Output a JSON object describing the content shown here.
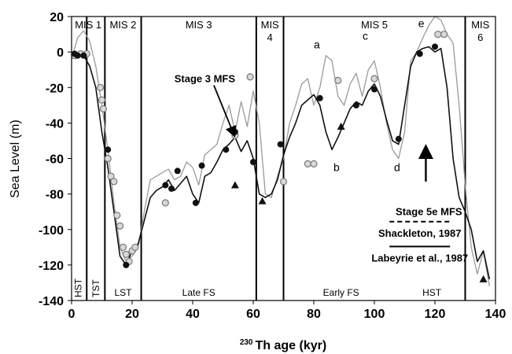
{
  "chart_data": {
    "type": "line",
    "xlabel": "230 Th age (kyr)",
    "xlabel_superscript": "230",
    "xlabel_rest": "Th age (kyr)",
    "ylabel": "Sea Level (m)",
    "xlim": [
      0,
      140
    ],
    "ylim": [
      -140,
      20
    ],
    "x_ticks": [
      0,
      20,
      40,
      60,
      80,
      100,
      120,
      140
    ],
    "y_ticks": [
      20,
      0,
      -20,
      -40,
      -60,
      -80,
      -100,
      -120,
      -140
    ],
    "grid": false,
    "legend_position": "bottom-right",
    "series": [
      {
        "name": "Shackleton, 1987",
        "style": "gray-line",
        "x": [
          0,
          2,
          4,
          6,
          8,
          10,
          12,
          14,
          16,
          18,
          20,
          22,
          24,
          26,
          28,
          30,
          32,
          34,
          36,
          38,
          40,
          42,
          44,
          46,
          48,
          50,
          52,
          54,
          56,
          58,
          60,
          62,
          64,
          66,
          68,
          70,
          72,
          74,
          76,
          78,
          80,
          82,
          84,
          86,
          88,
          90,
          92,
          94,
          96,
          98,
          100,
          102,
          104,
          106,
          108,
          110,
          112,
          114,
          116,
          118,
          120,
          122,
          124,
          126,
          128,
          130,
          132,
          134,
          136,
          138
        ],
        "values": [
          -4,
          8,
          12,
          6,
          -8,
          -30,
          -55,
          -85,
          -110,
          -118,
          -115,
          -110,
          -90,
          -72,
          -70,
          -68,
          -66,
          -72,
          -70,
          -62,
          -65,
          -75,
          -58,
          -55,
          -52,
          -40,
          -30,
          -45,
          -28,
          -42,
          -22,
          -40,
          -80,
          -82,
          -70,
          -60,
          -40,
          -30,
          -18,
          -15,
          -30,
          -20,
          -2,
          -5,
          -25,
          -30,
          -18,
          -12,
          -25,
          -10,
          -5,
          -20,
          -40,
          -55,
          -60,
          -45,
          -5,
          0,
          8,
          15,
          20,
          18,
          10,
          5,
          -30,
          -75,
          -110,
          -125,
          -112,
          -132
        ]
      },
      {
        "name": "Labeyrie et al., 1987",
        "style": "black-line",
        "x": [
          0,
          2,
          4,
          6,
          8,
          10,
          12,
          14,
          16,
          18,
          20,
          22,
          24,
          26,
          28,
          30,
          32,
          34,
          36,
          38,
          40,
          42,
          44,
          46,
          48,
          50,
          52,
          54,
          56,
          58,
          60,
          62,
          64,
          66,
          68,
          70,
          72,
          74,
          76,
          78,
          80,
          82,
          84,
          86,
          88,
          90,
          92,
          94,
          96,
          98,
          100,
          102,
          104,
          106,
          108,
          110,
          112,
          114,
          116,
          118,
          120,
          122,
          124,
          126,
          128,
          130,
          132,
          134,
          136,
          138
        ],
        "values": [
          -2,
          -1,
          -2,
          -8,
          -20,
          -45,
          -65,
          -90,
          -115,
          -120,
          -112,
          -108,
          -95,
          -82,
          -78,
          -76,
          -72,
          -78,
          -74,
          -70,
          -80,
          -85,
          -70,
          -68,
          -62,
          -55,
          -52,
          -48,
          -56,
          -50,
          -60,
          -80,
          -82,
          -80,
          -72,
          -58,
          -48,
          -40,
          -30,
          -27,
          -24,
          -30,
          -45,
          -55,
          -48,
          -40,
          -32,
          -28,
          -30,
          -22,
          -18,
          -25,
          -38,
          -50,
          -52,
          -30,
          -8,
          0,
          2,
          3,
          0,
          2,
          -20,
          -60,
          -82,
          -90,
          -100,
          -118,
          -112,
          -128
        ]
      },
      {
        "name": "open-circles",
        "style": "open-circle",
        "x": [
          1,
          3,
          5,
          9.5,
          10,
          10.5,
          12,
          13,
          14,
          15,
          16,
          17,
          18,
          19,
          20,
          21,
          31,
          54,
          59,
          70,
          78,
          80,
          88,
          100,
          121,
          123
        ],
        "values": [
          -2,
          -1,
          -1,
          -20,
          -27,
          -32,
          -60,
          -70,
          -73,
          -92,
          -98,
          -110,
          -114,
          -118,
          -112,
          -110,
          -85,
          -47,
          -14,
          -73,
          -63,
          -63,
          -16,
          -15,
          10,
          10
        ]
      },
      {
        "name": "filled-circles",
        "style": "filled-circle",
        "x": [
          1,
          2,
          4,
          12,
          18,
          31,
          33,
          35,
          41,
          43,
          51,
          54,
          60,
          69,
          82,
          94,
          100,
          108,
          115,
          120
        ],
        "values": [
          -1,
          -2,
          -2,
          -55,
          -120,
          -75,
          -77,
          -67,
          -85,
          -64,
          -55,
          -45,
          -62,
          -52,
          -26,
          -30,
          -21,
          -49,
          -1,
          3
        ]
      },
      {
        "name": "filled-triangles",
        "style": "filled-triangle",
        "x": [
          54,
          63,
          89,
          136
        ],
        "values": [
          -75,
          -84,
          -42,
          -128
        ]
      }
    ],
    "vertical_lines": [
      5,
      11,
      23,
      61,
      70,
      130
    ],
    "stage_labels": [
      {
        "text": "MIS 1",
        "x": 5.5
      },
      {
        "text": "MIS 2",
        "x": 17
      },
      {
        "text": "MIS 3",
        "x": 42
      },
      {
        "text": "MIS",
        "x": 65.5,
        "line2": "4"
      },
      {
        "text": "MIS 5",
        "x": 100
      },
      {
        "text": "MIS",
        "x": 135,
        "line2": "6"
      }
    ],
    "phase_labels": [
      {
        "text": "HST",
        "x": 2.2,
        "rotated": true
      },
      {
        "text": "TST",
        "x": 8,
        "rotated": true
      },
      {
        "text": "LST",
        "x": 17
      },
      {
        "text": "Late FS",
        "x": 42
      },
      {
        "text": "Early FS",
        "x": 89
      },
      {
        "text": "HST",
        "x": 119
      }
    ],
    "letter_labels": [
      {
        "text": "a",
        "x": 81,
        "y": 2
      },
      {
        "text": "b",
        "x": 87.5,
        "y": -67
      },
      {
        "text": "c",
        "x": 97,
        "y": 7
      },
      {
        "text": "d",
        "x": 107.5,
        "y": -67
      },
      {
        "text": "e",
        "x": 115.5,
        "y": 14
      }
    ],
    "annotations": [
      {
        "text": "Stage 3 MFS",
        "x": 44,
        "y": -17,
        "arrow_to": [
          53.5,
          -46
        ]
      },
      {
        "text": "Stage 5e MFS",
        "x": 118,
        "y": -92,
        "arrow_from": [
          117,
          -73
        ],
        "arrow_to": [
          117,
          -55
        ]
      }
    ],
    "legend": [
      {
        "label": "Shackleton, 1987",
        "style": "dashed"
      },
      {
        "label": "Labeyrie et al., 1987",
        "style": "solid"
      }
    ]
  }
}
